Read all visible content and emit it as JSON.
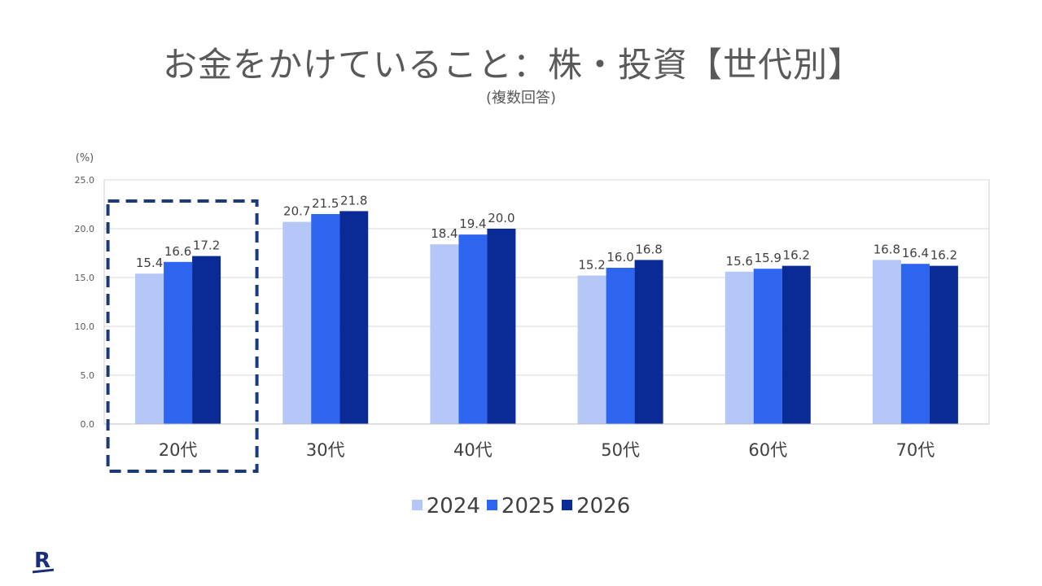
{
  "title": "お金をかけていること：株・投資【世代別】",
  "subtitle": "(複数回答)",
  "logo_text": "R",
  "chart_data": {
    "type": "bar",
    "unit_label": "(%)",
    "categories": [
      "20代",
      "30代",
      "40代",
      "50代",
      "60代",
      "70代"
    ],
    "series": [
      {
        "name": "2024",
        "color": "#b4c7f7",
        "values": [
          15.4,
          20.7,
          18.4,
          15.2,
          15.6,
          16.8
        ]
      },
      {
        "name": "2025",
        "color": "#2d64f0",
        "values": [
          16.6,
          21.5,
          19.4,
          16.0,
          15.9,
          16.4
        ]
      },
      {
        "name": "2026",
        "color": "#0a2a96",
        "values": [
          17.2,
          21.8,
          20.0,
          16.8,
          16.2,
          16.2
        ]
      }
    ],
    "ylim": [
      0,
      25
    ],
    "yticks": [
      "0.0",
      "5.0",
      "10.0",
      "15.0",
      "20.0",
      "25.0"
    ],
    "grid": true,
    "legend_position": "bottom",
    "highlight_category": "20代",
    "highlight_color": "#1a3a7a"
  }
}
